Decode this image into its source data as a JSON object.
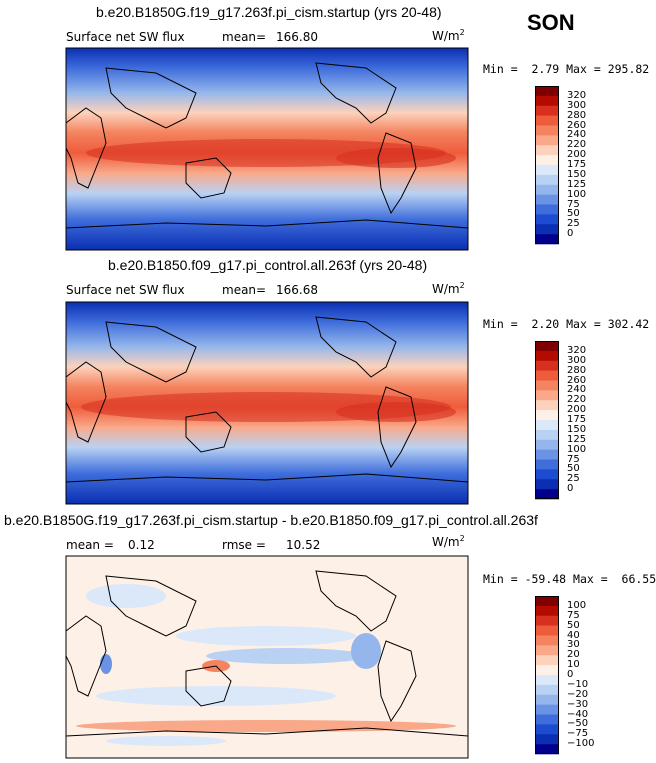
{
  "season": "SON",
  "units": "W/m",
  "units_exp": "2",
  "panels": [
    {
      "title": "b.e20.B1850G.f19_g17.263f.pi_cism.startup (yrs 20-48)",
      "field": "Surface net SW flux",
      "stat1_label": "mean=",
      "stat1_value": "166.80",
      "min_label": "Min =",
      "min_value": "2.79",
      "max_label": "Max =",
      "max_value": "295.82",
      "colorbar": {
        "levels": [
          "320",
          "300",
          "280",
          "260",
          "240",
          "220",
          "200",
          "175",
          "150",
          "125",
          "100",
          "75",
          "50",
          "25",
          "0"
        ],
        "colors": [
          "#7f0000",
          "#b40a00",
          "#d7301f",
          "#ef5c3c",
          "#f4835f",
          "#f9a98a",
          "#fcd2bc",
          "#fdf0e6",
          "#dbe8f9",
          "#b9d2f3",
          "#94b6ec",
          "#6a93e3",
          "#3f6ddb",
          "#1e4cd1",
          "#0a2fb3",
          "#00008c"
        ]
      }
    },
    {
      "title": "b.e20.B1850.f09_g17.pi_control.all.263f (yrs 20-48)",
      "field": "Surface net SW flux",
      "stat1_label": "mean=",
      "stat1_value": "166.68",
      "min_label": "Min =",
      "min_value": "2.20",
      "max_label": "Max =",
      "max_value": "302.42",
      "colorbar": {
        "levels": [
          "320",
          "300",
          "280",
          "260",
          "240",
          "220",
          "200",
          "175",
          "150",
          "125",
          "100",
          "75",
          "50",
          "25",
          "0"
        ],
        "colors": [
          "#7f0000",
          "#b40a00",
          "#d7301f",
          "#ef5c3c",
          "#f4835f",
          "#f9a98a",
          "#fcd2bc",
          "#fdf0e6",
          "#dbe8f9",
          "#b9d2f3",
          "#94b6ec",
          "#6a93e3",
          "#3f6ddb",
          "#1e4cd1",
          "#0a2fb3",
          "#00008c"
        ]
      }
    },
    {
      "title": "b.e20.B1850G.f19_g17.263f.pi_cism.startup - b.e20.B1850.f09_g17.pi_control.all.263f",
      "field": "mean =",
      "stat1_label": "",
      "stat1_value": "0.12",
      "stat2_label": "rmse =",
      "stat2_value": "10.52",
      "min_label": "Min =",
      "min_value": "-59.48",
      "max_label": "Max =",
      "max_value": "66.55",
      "colorbar": {
        "levels": [
          "100",
          "75",
          "50",
          "40",
          "30",
          "20",
          "10",
          "0",
          "−10",
          "−20",
          "−30",
          "−40",
          "−50",
          "−75",
          "−100"
        ],
        "colors": [
          "#7f0000",
          "#b40a00",
          "#d7301f",
          "#ef5c3c",
          "#f4835f",
          "#f9a98a",
          "#fcd2bc",
          "#fdf0e6",
          "#dbe8f9",
          "#b9d2f3",
          "#94b6ec",
          "#6a93e3",
          "#3f6ddb",
          "#1e4cd1",
          "#0a2fb3",
          "#00008c"
        ]
      }
    }
  ]
}
